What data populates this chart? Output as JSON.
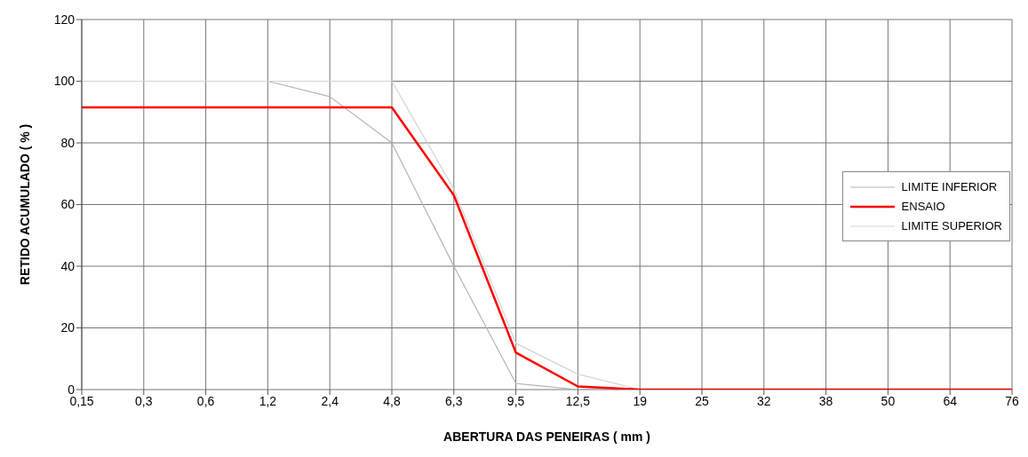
{
  "chart_data": {
    "type": "line",
    "xlabel": "ABERTURA DAS PENEIRAS ( mm )",
    "ylabel": "RETIDO ACUMULADO ( % )",
    "categories": [
      "0,15",
      "0,3",
      "0,6",
      "1,2",
      "2,4",
      "4,8",
      "6,3",
      "9,5",
      "12,5",
      "19",
      "25",
      "32",
      "38",
      "50",
      "64",
      "76"
    ],
    "series": [
      {
        "name": "LIMITE INFERIOR",
        "color": "#b4b4b4",
        "values": [
          100,
          100,
          100,
          100,
          95,
          80,
          40,
          2,
          0,
          0,
          null,
          null,
          null,
          null,
          null,
          null
        ]
      },
      {
        "name": "ENSAIO",
        "color": "#ff0000",
        "values": [
          91.5,
          91.5,
          91.5,
          91.5,
          91.5,
          91.5,
          63,
          12,
          1,
          0,
          0,
          0,
          0,
          0,
          0,
          0
        ]
      },
      {
        "name": "LIMITE SUPERIOR",
        "color": "#d4d4d4",
        "values": [
          100,
          100,
          100,
          100,
          100,
          100,
          65,
          15,
          5,
          0,
          null,
          null,
          null,
          null,
          null,
          null
        ]
      }
    ],
    "ylim": [
      0,
      120
    ],
    "yticks": [
      0,
      20,
      40,
      60,
      80,
      100,
      120
    ],
    "grid": true,
    "legend": "right",
    "marker": "none",
    "line_style": "solid"
  }
}
